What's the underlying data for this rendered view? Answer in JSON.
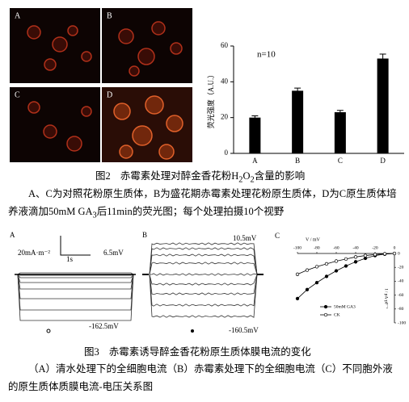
{
  "figure2": {
    "panels": [
      "A",
      "B",
      "C",
      "D"
    ],
    "chart": {
      "type": "bar",
      "y_label": "荧光强度（A.U.）",
      "annotation": "n=10",
      "categories": [
        "A",
        "B",
        "C",
        "D"
      ],
      "values": [
        20,
        35,
        23,
        53
      ],
      "errors": [
        1,
        1.5,
        1,
        2.5
      ],
      "color": "#000000",
      "ylim": [
        0,
        60
      ],
      "yticks": [
        0,
        20,
        40,
        60
      ]
    },
    "caption": [
      "图2",
      "赤霉素处理对醉金香花粉H",
      "2",
      "O",
      "2",
      "含量的影响"
    ],
    "description": [
      "A、C为对照花粉原生质体，B为盛花期赤霉素处理花粉原生质体，D为C原生质体培养液滴加50mM GA",
      "3",
      "后11min的荧光图；每个处理拍摄10个视野"
    ]
  },
  "figure3": {
    "panel_a": {
      "label": "A",
      "scale_current": "20mA·m⁻²",
      "scale_time": "1s",
      "v_top": "6.5mV",
      "v_bottom": "-162.5mV"
    },
    "panel_b": {
      "label": "B",
      "v_top": "10.5mV",
      "v_bottom": "-160.5mV"
    },
    "panel_c": {
      "label": "C",
      "type": "line",
      "x_label": "V / mV",
      "y_label": "I / pA·pF⁻¹",
      "x": [
        -100,
        -90,
        -80,
        -70,
        -60,
        -50,
        -40,
        -30,
        -20,
        -10,
        0
      ],
      "series": [
        {
          "name": "50mM GA3",
          "color": "#000000",
          "marker": "filled",
          "values": [
            -65,
            -52,
            -42,
            -33,
            -25,
            -18,
            -12,
            -7,
            -3,
            -1,
            0
          ]
        },
        {
          "name": "CK",
          "color": "#000000",
          "marker": "open",
          "values": [
            -30,
            -24,
            -19,
            -15,
            -11,
            -8,
            -5,
            -3,
            -1.5,
            -0.5,
            0
          ]
        }
      ],
      "xlim": [
        -100,
        0
      ],
      "xticks": [
        -100,
        -80,
        -60,
        -40,
        -20,
        0
      ],
      "ylim": [
        -100,
        0
      ],
      "yticks": [
        0,
        -20,
        -40,
        -60,
        -80,
        -100
      ]
    },
    "caption": [
      "图3",
      "赤霉素诱导醉金香花粉原生质体膜电流的变化"
    ],
    "description": "（A）清水处理下的全细胞电流（B）赤霉素处理下的全细胞电流（C）不同胞外液的原生质体质膜电流-电压关系图"
  }
}
